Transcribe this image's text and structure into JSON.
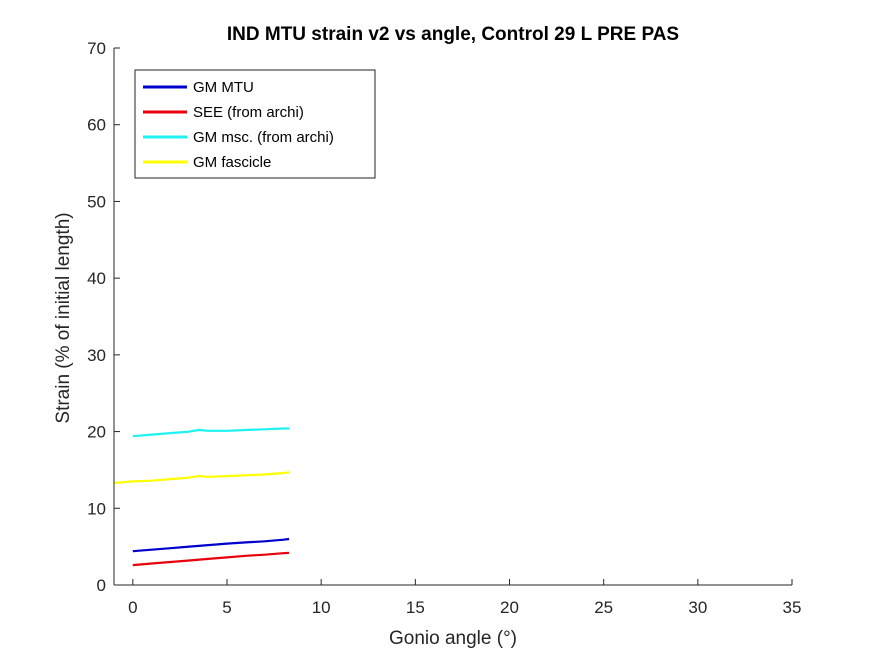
{
  "chart_data": {
    "type": "line",
    "title": "IND MTU strain v2 vs angle, Control 29 L PRE PAS",
    "xlabel": "Gonio angle (°)",
    "ylabel": "Strain (% of initial length)",
    "xlim": [
      -1,
      35
    ],
    "ylim": [
      0,
      70
    ],
    "xticks": [
      0,
      5,
      10,
      15,
      20,
      25,
      30,
      35
    ],
    "yticks": [
      0,
      10,
      20,
      30,
      40,
      50,
      60,
      70
    ],
    "grid": false,
    "legend_position": "top-left",
    "series": [
      {
        "name": "GM MTU",
        "color": "#0000cd",
        "x": [
          0,
          1,
          2,
          3,
          4,
          5,
          6,
          7,
          8,
          8.3
        ],
        "y": [
          4.4,
          4.6,
          4.8,
          5.0,
          5.2,
          5.4,
          5.55,
          5.7,
          5.9,
          6.0
        ]
      },
      {
        "name": "SEE (from archi)",
        "color": "#e8000b",
        "x": [
          0,
          1,
          2,
          3,
          4,
          5,
          6,
          7,
          8,
          8.3
        ],
        "y": [
          2.6,
          2.8,
          3.0,
          3.2,
          3.4,
          3.6,
          3.8,
          3.95,
          4.15,
          4.2
        ]
      },
      {
        "name": "GM msc. (from archi)",
        "color": "#1ff2f2",
        "x": [
          0,
          1,
          2,
          3,
          3.5,
          4,
          5,
          6,
          7,
          8,
          8.3
        ],
        "y": [
          19.4,
          19.6,
          19.8,
          20.0,
          20.2,
          20.1,
          20.1,
          20.2,
          20.3,
          20.4,
          20.4
        ]
      },
      {
        "name": "GM fascicle",
        "color": "#ffff00",
        "x": [
          -1,
          0,
          1,
          2,
          3,
          3.5,
          4,
          5,
          6,
          7,
          8,
          8.3
        ],
        "y": [
          13.3,
          13.5,
          13.6,
          13.8,
          14.0,
          14.2,
          14.1,
          14.2,
          14.3,
          14.4,
          14.6,
          14.7
        ]
      }
    ]
  }
}
